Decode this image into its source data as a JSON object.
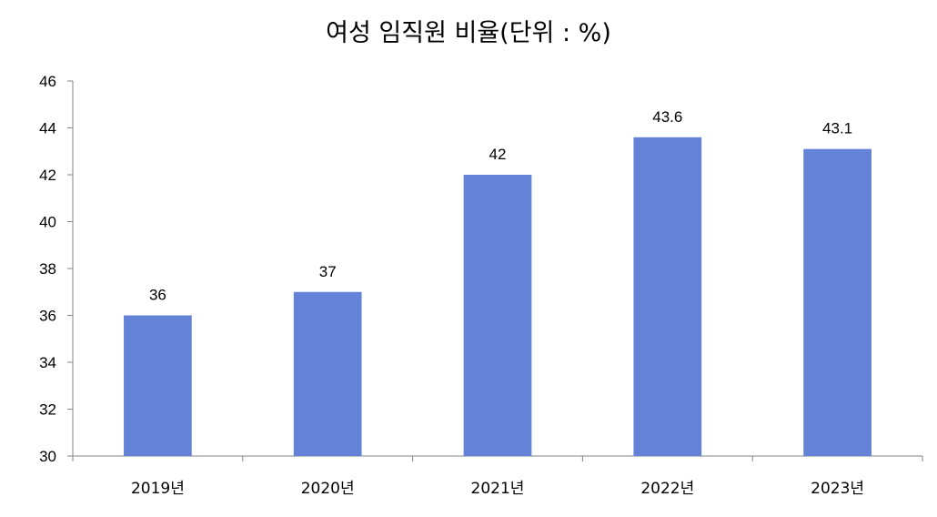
{
  "chart_data": {
    "type": "bar",
    "title": "여성 임직원 비율(단위 : %)",
    "categories": [
      "2019년",
      "2020년",
      "2021년",
      "2022년",
      "2023년"
    ],
    "values": [
      36,
      37,
      42,
      43.6,
      43.1
    ],
    "data_labels": [
      "36",
      "37",
      "42",
      "43.6",
      "43.1"
    ],
    "ylim": [
      30,
      46
    ],
    "yticks": [
      30,
      32,
      34,
      36,
      38,
      40,
      42,
      44,
      46
    ],
    "xlabel": "",
    "ylabel": "",
    "grid": false,
    "legend": "none",
    "bar_color": "#6482D8"
  }
}
